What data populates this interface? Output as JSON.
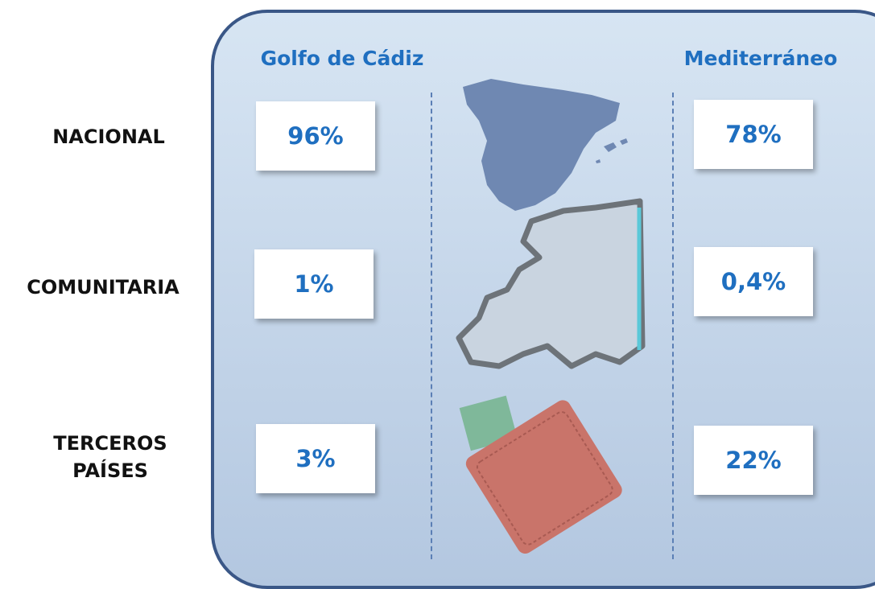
{
  "columns": [
    "Golfo de Cádiz",
    "Mediterráneo"
  ],
  "rows": [
    {
      "label": "NACIONAL",
      "values": [
        "96%",
        "78%"
      ]
    },
    {
      "label": "COMUNITARIA",
      "values": [
        "1%",
        "0,4%"
      ]
    },
    {
      "label": "TERCEROS PAÍSES",
      "values": [
        "3%",
        "22%"
      ]
    }
  ]
}
